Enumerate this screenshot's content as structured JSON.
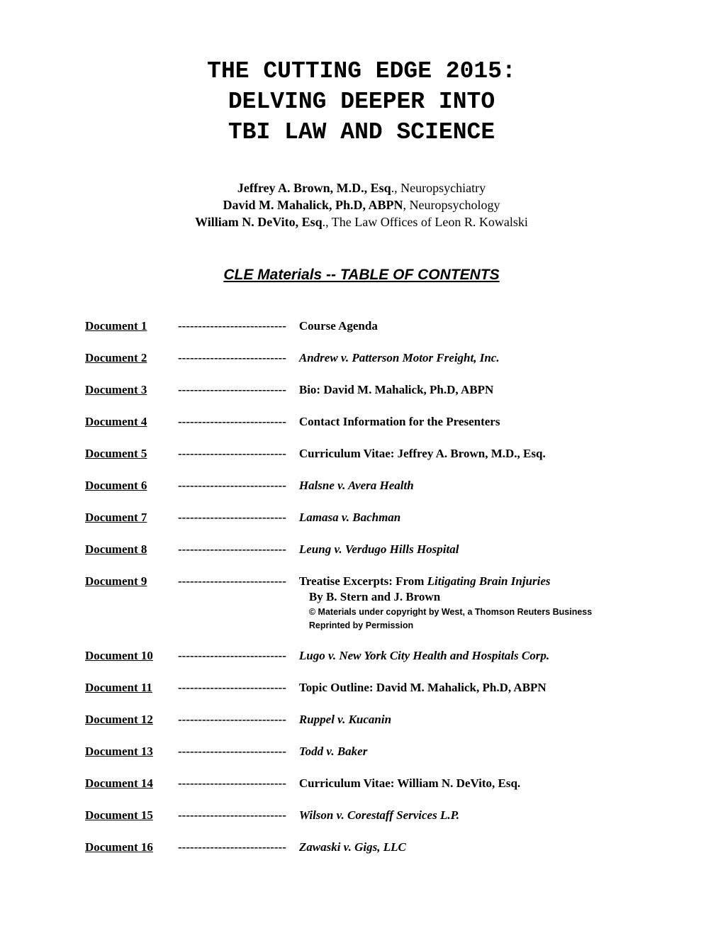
{
  "title": {
    "line1": "THE CUTTING EDGE 2015:",
    "line2": "DELVING DEEPER INTO",
    "line3": "TBI LAW AND SCIENCE"
  },
  "authors": [
    {
      "name": "Jeffrey A. Brown, M.D., Esq",
      "suffix": "., Neuropsychiatry"
    },
    {
      "name": "David M. Mahalick, Ph.D, ABPN",
      "suffix": ", Neuropsychology"
    },
    {
      "name": "William N. DeVito, Esq",
      "suffix": "., The Law Offices of Leon R. Kowalski"
    }
  ],
  "section_heading": "CLE Materials  --  TABLE OF CONTENTS",
  "dashes": "---------------------------",
  "toc": [
    {
      "label": "Document 1",
      "title": "Course Agenda",
      "italic": false
    },
    {
      "label": "Document 2",
      "title": "Andrew v. Patterson Motor Freight, Inc.",
      "italic": true
    },
    {
      "label": "Document 3",
      "title": "Bio:   David M. Mahalick, Ph.D, ABPN",
      "italic": false
    },
    {
      "label": "Document 4",
      "title": "Contact Information for the Presenters",
      "italic": false
    },
    {
      "label": "Document 5",
      "title": "Curriculum Vitae:   Jeffrey A. Brown, M.D., Esq.",
      "italic": false
    },
    {
      "label": "Document 6",
      "title": "Halsne v. Avera Health",
      "italic": true
    },
    {
      "label": "Document 7",
      "title": "Lamasa v. Bachman",
      "italic": true
    },
    {
      "label": "Document 8",
      "title": "Leung v. Verdugo Hills Hospital",
      "italic": true
    },
    {
      "label": "Document 9",
      "title_prefix": "Treatise Excerpts:  From ",
      "title_italic": "Litigating Brain Injuries",
      "sub": "By B. Stern and J. Brown",
      "copyright1": "©  Materials under copyright by West, a Thomson Reuters Business",
      "copyright2": "Reprinted by Permission",
      "complex": true
    },
    {
      "label": "Document 10",
      "title": "Lugo v. New York City Health and Hospitals Corp.",
      "italic": true
    },
    {
      "label": "Document 11",
      "title": "Topic Outline:  David M. Mahalick, Ph.D, ABPN",
      "italic": false
    },
    {
      "label": "Document 12",
      "title": "Ruppel v. Kucanin",
      "italic": true
    },
    {
      "label": "Document 13",
      "title": "Todd v. Baker",
      "italic": true
    },
    {
      "label": "Document 14",
      "title": "Curriculum Vitae:   William N. DeVito, Esq.",
      "italic": false
    },
    {
      "label": "Document 15",
      "title": "Wilson v. Corestaff Services L.P.",
      "italic": true
    },
    {
      "label": "Document 16",
      "title": "Zawaski v. Gigs, LLC",
      "italic": true
    }
  ]
}
